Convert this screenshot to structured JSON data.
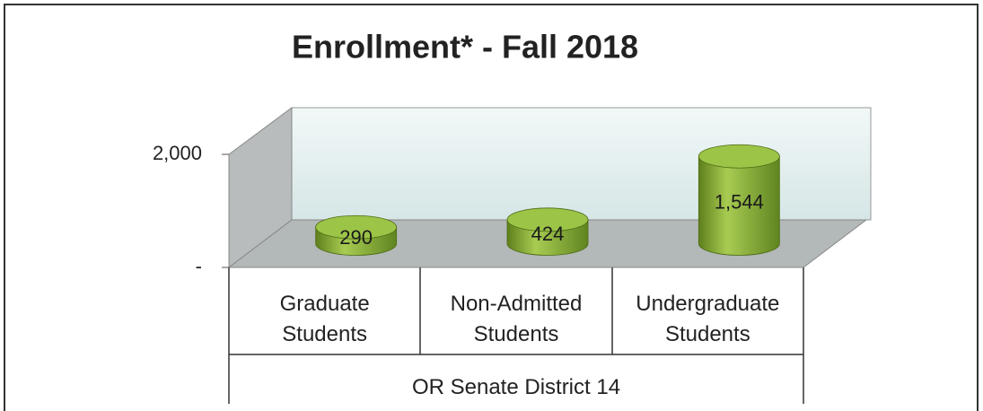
{
  "chart_data": {
    "type": "bar3d",
    "title": "Enrollment* - Fall 2018",
    "categories": [
      "Graduate Students",
      "Non-Admitted Students",
      "Undergraduate Students"
    ],
    "group_label": "OR Senate District 14",
    "values": [
      290,
      424,
      1544
    ],
    "value_labels": [
      "290",
      "424",
      "1,544"
    ],
    "color": "#8db33a",
    "ylim": [
      0,
      2000
    ],
    "yticks": [
      {
        "value": 0,
        "label": "-"
      },
      {
        "value": 2000,
        "label": "2,000"
      }
    ]
  }
}
